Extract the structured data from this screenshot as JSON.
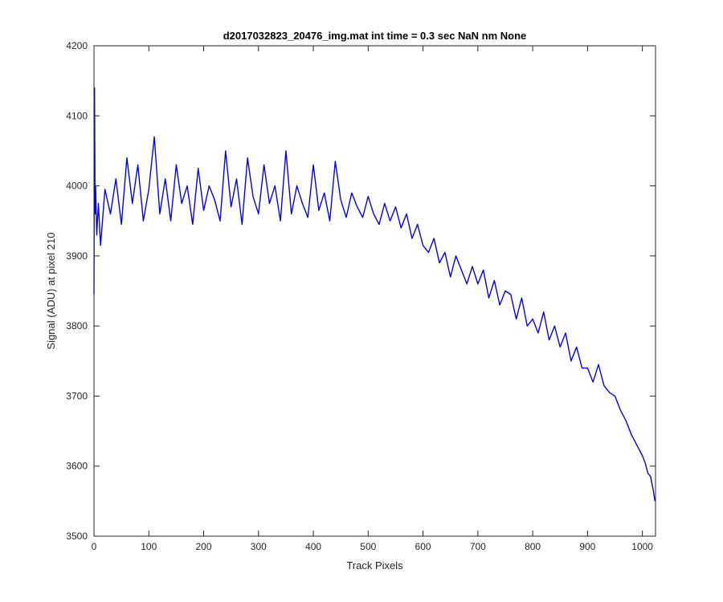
{
  "chart_data": {
    "type": "line",
    "title": "d2017032823_20476_img.mat int time = 0.3 sec  NaN nm None",
    "xlabel": "Track Pixels",
    "ylabel": "Signal (ADU) at pixel 210",
    "xlim": [
      0,
      1024
    ],
    "ylim": [
      3500,
      4200
    ],
    "xticks": [
      "0",
      "100",
      "200",
      "300",
      "400",
      "500",
      "600",
      "700",
      "800",
      "900",
      "1000"
    ],
    "yticks": [
      "3500",
      "3600",
      "3700",
      "3800",
      "3900",
      "4000",
      "4100",
      "4200"
    ],
    "grid": false,
    "legend": "none",
    "series": [
      {
        "color": "#0000ff",
        "x": [
          0,
          1,
          2,
          3,
          5,
          8,
          12,
          20,
          30,
          40,
          50,
          60,
          70,
          80,
          90,
          100,
          110,
          120,
          130,
          140,
          150,
          160,
          170,
          180,
          190,
          200,
          210,
          220,
          230,
          240,
          250,
          260,
          270,
          280,
          290,
          300,
          310,
          320,
          330,
          340,
          350,
          360,
          370,
          380,
          390,
          400,
          410,
          420,
          430,
          440,
          450,
          460,
          470,
          480,
          490,
          500,
          510,
          520,
          530,
          540,
          550,
          560,
          570,
          580,
          590,
          600,
          610,
          620,
          630,
          640,
          650,
          660,
          670,
          680,
          690,
          700,
          710,
          720,
          730,
          740,
          750,
          760,
          770,
          780,
          790,
          800,
          810,
          820,
          830,
          840,
          850,
          860,
          870,
          880,
          890,
          900,
          910,
          920,
          930,
          940,
          950,
          960,
          970,
          980,
          990,
          1000,
          1005,
          1010,
          1015,
          1020,
          1023
        ],
        "values": [
          3845,
          4140,
          3960,
          4000,
          3930,
          3975,
          3915,
          3995,
          3960,
          4010,
          3945,
          4040,
          3975,
          4030,
          3950,
          3995,
          4070,
          3960,
          4010,
          3950,
          4030,
          3975,
          4000,
          3945,
          4025,
          3965,
          4000,
          3980,
          3950,
          4050,
          3970,
          4010,
          3945,
          4040,
          3985,
          3960,
          4030,
          3975,
          4000,
          3950,
          4050,
          3960,
          4000,
          3975,
          3955,
          4030,
          3965,
          3990,
          3950,
          4035,
          3980,
          3955,
          3990,
          3970,
          3955,
          3985,
          3960,
          3945,
          3975,
          3950,
          3970,
          3940,
          3960,
          3925,
          3945,
          3915,
          3905,
          3925,
          3890,
          3905,
          3870,
          3900,
          3880,
          3860,
          3885,
          3860,
          3880,
          3840,
          3865,
          3830,
          3850,
          3845,
          3810,
          3840,
          3800,
          3810,
          3790,
          3820,
          3780,
          3800,
          3770,
          3790,
          3750,
          3770,
          3740,
          3740,
          3720,
          3745,
          3715,
          3705,
          3700,
          3680,
          3665,
          3645,
          3630,
          3615,
          3605,
          3590,
          3585,
          3565,
          3550
        ]
      }
    ]
  }
}
